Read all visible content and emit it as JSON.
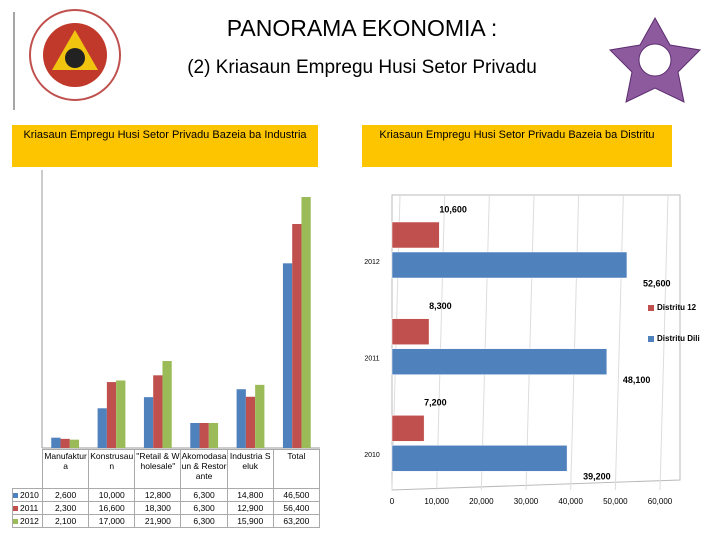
{
  "header": {
    "title": "PANORAMA EKONOMIA  :",
    "subtitle": "(2) Kriasaun Empregu Husi Setor Privadu"
  },
  "chart_data": [
    {
      "type": "bar",
      "title": "Kriasaun Empregu Husi Setor Privadu Bazeia ba Industria",
      "categories": [
        "Manufaktura",
        "Konstrusaun",
        "\"Retail & Wholesale\"",
        "Akomodasaun & Restorante",
        "Industria Seluk",
        "Total"
      ],
      "series": [
        {
          "name": "2010",
          "color": "#4f81bd",
          "values": [
            2600,
            10000,
            12800,
            6300,
            14800,
            46500
          ],
          "value_labels": [
            "2,600",
            "10,000",
            "12,800",
            "6,300",
            "14,800",
            "46,500"
          ]
        },
        {
          "name": "2011",
          "color": "#c0504d",
          "values": [
            2300,
            16600,
            18300,
            6300,
            12900,
            56400
          ],
          "value_labels": [
            "2,300",
            "16,600",
            "18,300",
            "6,300",
            "12,900",
            "56,400"
          ]
        },
        {
          "name": "2012",
          "color": "#9bbb59",
          "values": [
            2100,
            17000,
            21900,
            6300,
            15900,
            63200
          ],
          "value_labels": [
            "2,100",
            "17,000",
            "21,900",
            "6,300",
            "15,900",
            "63,200"
          ]
        }
      ],
      "ylim": [
        0,
        70000
      ]
    },
    {
      "type": "hbar",
      "title": "Kriasaun Empregu Husi Setor Privadu Bazeia ba Distritu",
      "categories": [
        "2010",
        "2011",
        "2012"
      ],
      "series": [
        {
          "name": "Distritu 12",
          "color": "#c0504d",
          "values": [
            7200,
            8300,
            10600
          ],
          "value_labels": [
            "7,200",
            "8,300",
            "10,600"
          ]
        },
        {
          "name": "Distritu Dili",
          "color": "#4f81bd",
          "values": [
            39200,
            48100,
            52600
          ],
          "value_labels": [
            "39,200",
            "48,100",
            "52,600"
          ]
        }
      ],
      "xlim": [
        0,
        60000
      ],
      "xticks": [
        0,
        {
          "value": 10000,
          "label": "10,000"
        },
        {
          "value": 20000,
          "label": "20,000"
        },
        {
          "value": 30000,
          "label": "30,000"
        },
        {
          "value": 40000,
          "label": "40,000"
        },
        {
          "value": 50000,
          "label": "50,000"
        },
        {
          "value": 60000,
          "label": "60,000"
        }
      ],
      "legend": "right"
    }
  ]
}
